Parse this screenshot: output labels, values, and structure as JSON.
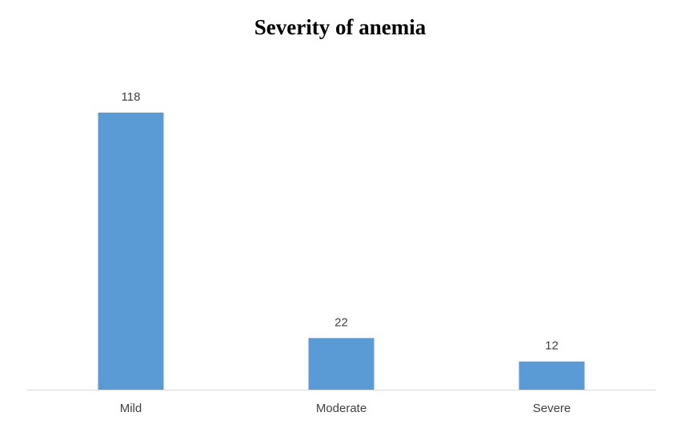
{
  "chart_data": {
    "type": "bar",
    "title": "Severity of anemia",
    "categories": [
      "Mild",
      "Moderate",
      "Severe"
    ],
    "values": [
      118,
      22,
      12
    ],
    "color": "#5b9bd5"
  }
}
